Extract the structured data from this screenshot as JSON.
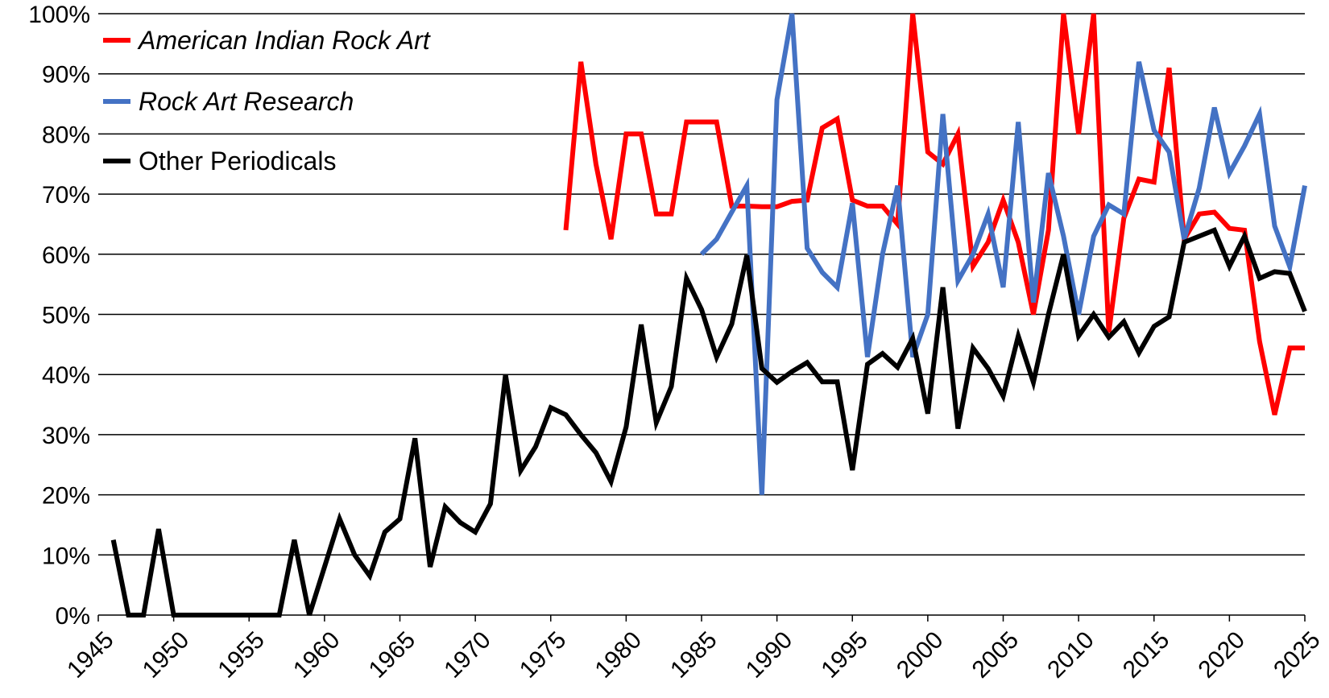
{
  "chart_data": {
    "type": "line",
    "title": "",
    "xlabel": "",
    "ylabel": "",
    "xlim": [
      1945,
      2025
    ],
    "ylim": [
      0,
      100
    ],
    "y_ticks": [
      "0%",
      "10%",
      "20%",
      "30%",
      "40%",
      "50%",
      "60%",
      "70%",
      "80%",
      "90%",
      "100%"
    ],
    "x_ticks": [
      "1945",
      "1950",
      "1955",
      "1960",
      "1965",
      "1970",
      "1975",
      "1980",
      "1985",
      "1990",
      "1995",
      "2000",
      "2005",
      "2010",
      "2015",
      "2020",
      "2025"
    ],
    "grid": "horizontal",
    "legend_position": "top-left",
    "series": [
      {
        "name": "American Indian Rock Art",
        "italic": true,
        "color": "#ff0000",
        "points": [
          [
            1976,
            64
          ],
          [
            1977,
            92
          ],
          [
            1978,
            75
          ],
          [
            1979,
            62.5
          ],
          [
            1980,
            80
          ],
          [
            1981,
            80
          ],
          [
            1982,
            66.7
          ],
          [
            1983,
            66.7
          ],
          [
            1984,
            82
          ],
          [
            1985,
            82
          ],
          [
            1986,
            82
          ],
          [
            1987,
            68
          ],
          [
            1988,
            68
          ],
          [
            1989,
            67.9
          ],
          [
            1990,
            67.9
          ],
          [
            1991,
            68.8
          ],
          [
            1992,
            69
          ],
          [
            1993,
            81
          ],
          [
            1994,
            82.5
          ],
          [
            1995,
            69
          ],
          [
            1996,
            68
          ],
          [
            1997,
            68
          ],
          [
            1998,
            65
          ],
          [
            1999,
            100
          ],
          [
            2000,
            77
          ],
          [
            2001,
            75
          ],
          [
            2002,
            80
          ],
          [
            2003,
            58
          ],
          [
            2004,
            62
          ],
          [
            2005,
            69
          ],
          [
            2006,
            62
          ],
          [
            2007,
            50
          ],
          [
            2008,
            64
          ],
          [
            2009,
            100
          ],
          [
            2010,
            80
          ],
          [
            2011,
            100
          ],
          [
            2012,
            47
          ],
          [
            2013,
            66
          ],
          [
            2014,
            72.5
          ],
          [
            2015,
            72
          ],
          [
            2016,
            91
          ],
          [
            2017,
            62.5
          ],
          [
            2018,
            66.7
          ],
          [
            2019,
            67
          ],
          [
            2020,
            64.3
          ],
          [
            2021,
            64
          ],
          [
            2022,
            45.5
          ],
          [
            2023,
            33.3
          ],
          [
            2024,
            44.4
          ],
          [
            2025,
            44.4
          ]
        ]
      },
      {
        "name": "Rock Art Research",
        "italic": true,
        "color": "#4472c4",
        "points": [
          [
            1985,
            60
          ],
          [
            1986,
            62.5
          ],
          [
            1987,
            67
          ],
          [
            1988,
            71.4
          ],
          [
            1989,
            20
          ],
          [
            1990,
            85.7
          ],
          [
            1991,
            100
          ],
          [
            1992,
            61
          ],
          [
            1993,
            57
          ],
          [
            1994,
            54.5
          ],
          [
            1995,
            68.5
          ],
          [
            1996,
            42.9
          ],
          [
            1997,
            60
          ],
          [
            1998,
            71.4
          ],
          [
            1999,
            42.9
          ],
          [
            2000,
            50
          ],
          [
            2001,
            83.3
          ],
          [
            2002,
            55.6
          ],
          [
            2003,
            60
          ],
          [
            2004,
            66.7
          ],
          [
            2005,
            54.5
          ],
          [
            2006,
            82
          ],
          [
            2007,
            52
          ],
          [
            2008,
            73.5
          ],
          [
            2009,
            63
          ],
          [
            2010,
            50
          ],
          [
            2011,
            63
          ],
          [
            2012,
            68.2
          ],
          [
            2013,
            66.7
          ],
          [
            2014,
            92
          ],
          [
            2015,
            80.6
          ],
          [
            2016,
            77
          ],
          [
            2017,
            62.5
          ],
          [
            2018,
            71
          ],
          [
            2019,
            84.4
          ],
          [
            2020,
            73.5
          ],
          [
            2021,
            78
          ],
          [
            2022,
            83.3
          ],
          [
            2023,
            64.7
          ],
          [
            2024,
            57.9
          ],
          [
            2025,
            71.4
          ]
        ]
      },
      {
        "name": "Other Periodicals",
        "italic": false,
        "color": "#000000",
        "points": [
          [
            1946,
            12.5
          ],
          [
            1947,
            0
          ],
          [
            1948,
            0
          ],
          [
            1949,
            14.3
          ],
          [
            1950,
            0
          ],
          [
            1951,
            0
          ],
          [
            1952,
            0
          ],
          [
            1953,
            0
          ],
          [
            1954,
            0
          ],
          [
            1955,
            0
          ],
          [
            1956,
            0
          ],
          [
            1957,
            0
          ],
          [
            1958,
            12.5
          ],
          [
            1959,
            0
          ],
          [
            1960,
            8
          ],
          [
            1961,
            16
          ],
          [
            1962,
            10
          ],
          [
            1963,
            6.5
          ],
          [
            1964,
            13.8
          ],
          [
            1965,
            16
          ],
          [
            1966,
            29.4
          ],
          [
            1967,
            8
          ],
          [
            1968,
            18
          ],
          [
            1969,
            15.4
          ],
          [
            1970,
            13.8
          ],
          [
            1971,
            18.5
          ],
          [
            1972,
            40
          ],
          [
            1973,
            24
          ],
          [
            1974,
            28
          ],
          [
            1975,
            34.5
          ],
          [
            1976,
            33.3
          ],
          [
            1977,
            30
          ],
          [
            1978,
            27
          ],
          [
            1979,
            22.2
          ],
          [
            1980,
            31.3
          ],
          [
            1981,
            48.3
          ],
          [
            1982,
            32
          ],
          [
            1983,
            38
          ],
          [
            1984,
            56
          ],
          [
            1985,
            50.8
          ],
          [
            1986,
            42.9
          ],
          [
            1987,
            48.4
          ],
          [
            1988,
            59.8
          ],
          [
            1989,
            41
          ],
          [
            1990,
            38.7
          ],
          [
            1991,
            40.5
          ],
          [
            1992,
            42
          ],
          [
            1993,
            38.8
          ],
          [
            1994,
            38.8
          ],
          [
            1995,
            24.1
          ],
          [
            1996,
            41.7
          ],
          [
            1997,
            43.5
          ],
          [
            1998,
            41.2
          ],
          [
            1999,
            46
          ],
          [
            2000,
            33.5
          ],
          [
            2001,
            54.5
          ],
          [
            2002,
            31
          ],
          [
            2003,
            44.4
          ],
          [
            2004,
            41
          ],
          [
            2005,
            36.4
          ],
          [
            2006,
            46.4
          ],
          [
            2007,
            38.7
          ],
          [
            2008,
            50
          ],
          [
            2009,
            60
          ],
          [
            2010,
            46.4
          ],
          [
            2011,
            50
          ],
          [
            2012,
            46.2
          ],
          [
            2013,
            48.8
          ],
          [
            2014,
            43.6
          ],
          [
            2015,
            48
          ],
          [
            2016,
            49.6
          ],
          [
            2017,
            62
          ],
          [
            2018,
            63
          ],
          [
            2019,
            64
          ],
          [
            2020,
            58
          ],
          [
            2021,
            63
          ],
          [
            2022,
            56
          ],
          [
            2023,
            57.1
          ],
          [
            2024,
            56.8
          ],
          [
            2025,
            50.5
          ]
        ]
      }
    ]
  }
}
